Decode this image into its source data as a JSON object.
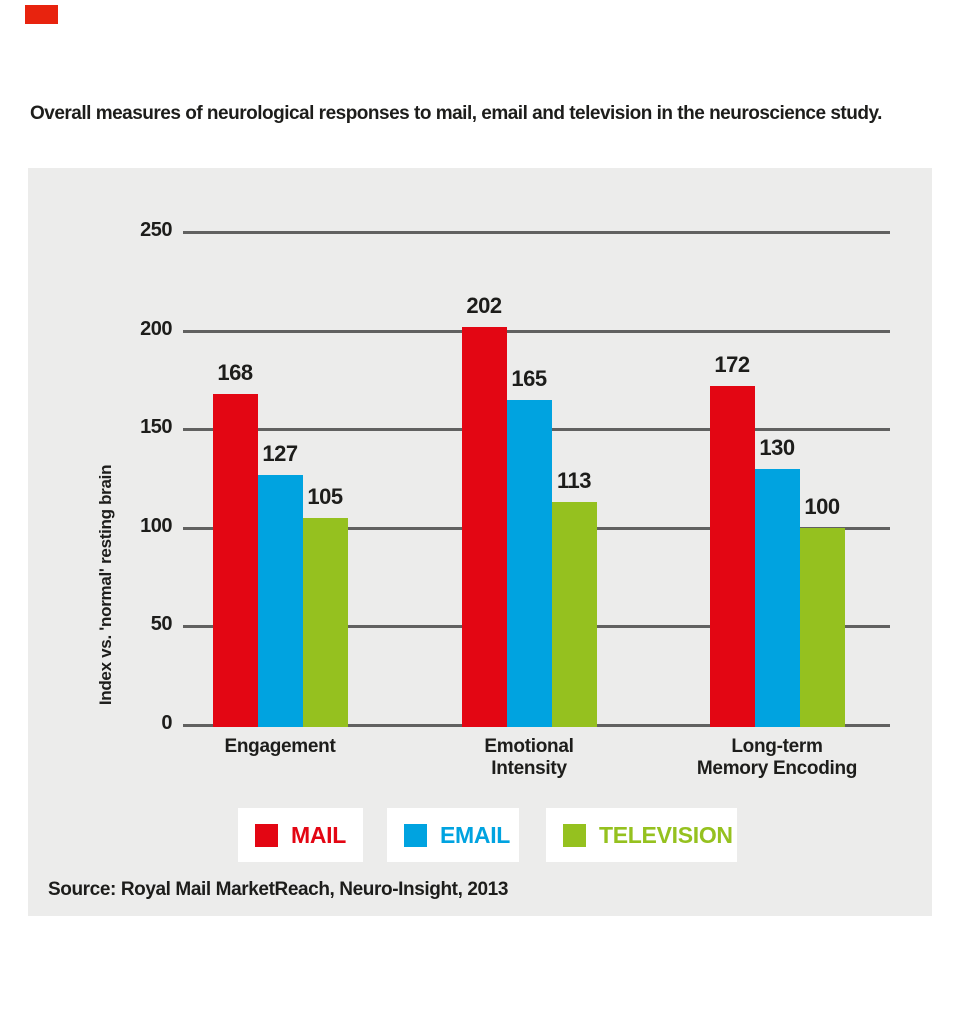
{
  "page": {
    "title": "Overall measures of neurological responses to mail, email and television in the neuroscience study.",
    "source": "Source: Royal Mail MarketReach, Neuro-Insight, 2013",
    "corner_mark_color": "#e8230e",
    "panel_color": "#ececeb",
    "text_color": "#1d1d1b",
    "gridline_color": "#616160"
  },
  "chart_data": {
    "type": "bar",
    "title": "Overall measures of neurological responses to mail, email and television in the neuroscience study.",
    "ylabel": "Index vs. 'normal' resting brain",
    "xlabel": "",
    "ylim": [
      0,
      250
    ],
    "yticks": [
      0,
      50,
      100,
      150,
      200,
      250
    ],
    "grid": "horizontal gridlines on",
    "legend_position": "bottom",
    "categories": [
      "Engagement",
      "Emotional Intensity",
      "Long-term Memory Encoding"
    ],
    "category_label_lines": [
      [
        "Engagement"
      ],
      [
        "Emotional",
        "Intensity"
      ],
      [
        "Long-term",
        "Memory Encoding"
      ]
    ],
    "series": [
      {
        "name": "MAIL",
        "color": "#e30613",
        "values": [
          168,
          202,
          172
        ]
      },
      {
        "name": "EMAIL",
        "color": "#00a3e0",
        "values": [
          127,
          165,
          130
        ]
      },
      {
        "name": "TELEVISION",
        "color": "#95c11f",
        "values": [
          105,
          113,
          100
        ]
      }
    ],
    "source": "Source: Royal Mail MarketReach, Neuro-Insight, 2013"
  }
}
